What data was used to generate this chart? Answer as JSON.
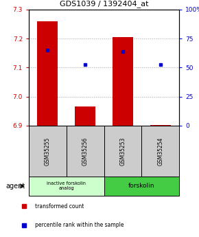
{
  "title": "GDS1039 / 1392404_at",
  "samples": [
    "GSM35255",
    "GSM35256",
    "GSM35253",
    "GSM35254"
  ],
  "bar_bottoms": [
    6.9,
    6.9,
    6.9,
    6.9
  ],
  "bar_tops": [
    7.26,
    6.965,
    7.205,
    6.902
  ],
  "percentile_values": [
    7.16,
    7.11,
    7.155,
    7.11
  ],
  "ylim_left": [
    6.9,
    7.3
  ],
  "ylim_right": [
    0,
    100
  ],
  "yticks_left": [
    6.9,
    7.0,
    7.1,
    7.2,
    7.3
  ],
  "yticks_right": [
    0,
    25,
    50,
    75,
    100
  ],
  "ytick_labels_right": [
    "0",
    "25",
    "50",
    "75",
    "100%"
  ],
  "bar_color": "#cc0000",
  "percentile_color": "#0000cc",
  "agent_label": "agent",
  "group1_label": "inactive forskolin\nanalog",
  "group2_label": "forskolin",
  "group1_color": "#ccffcc",
  "group2_color": "#44cc44",
  "sample_box_color": "#cccccc",
  "legend_red_label": "transformed count",
  "legend_blue_label": "percentile rank within the sample",
  "bar_width": 0.55,
  "grid_yticks": [
    7.0,
    7.1,
    7.2
  ]
}
